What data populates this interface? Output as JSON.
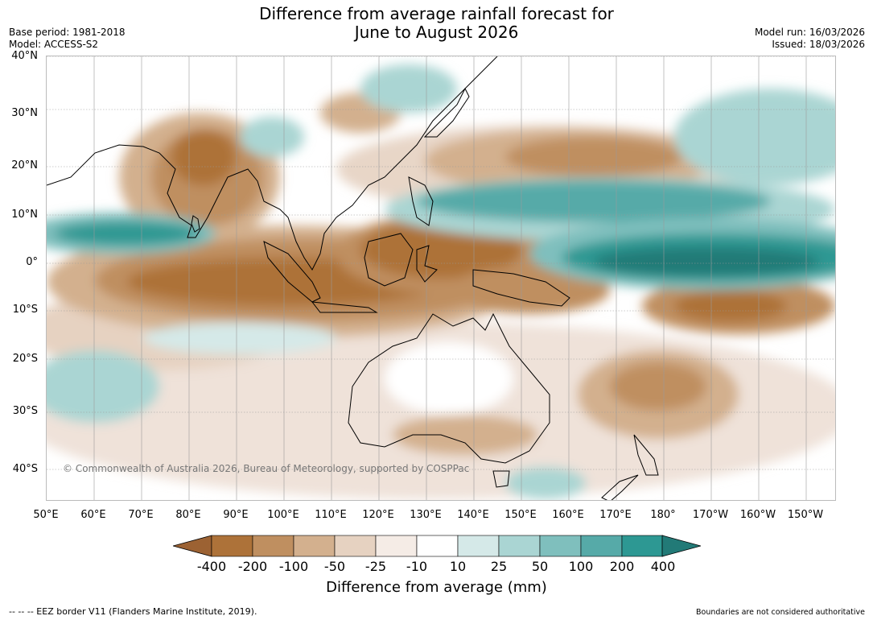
{
  "title": {
    "line1": "Difference from average rainfall forecast for",
    "line2": "June to August 2026"
  },
  "meta": {
    "base_period": "Base period: 1981-2018",
    "model": "Model: ACCESS-S2",
    "model_run": "Model run: 16/03/2026",
    "issued": "Issued: 18/03/2026"
  },
  "lat_labels": [
    "40°N",
    "30°N",
    "20°N",
    "10°N",
    "0°",
    "10°S",
    "20°S",
    "30°S",
    "40°S"
  ],
  "lon_labels": [
    "50°E",
    "60°E",
    "70°E",
    "80°E",
    "90°E",
    "100°E",
    "110°E",
    "120°E",
    "130°E",
    "140°E",
    "150°E",
    "160°E",
    "170°E",
    "180°",
    "170°W",
    "160°W",
    "150°W"
  ],
  "copyright": "© Commonwealth of Australia 2026, Bureau of Meteorology, supported by COSPPac",
  "colorbar": {
    "labels": [
      "-400",
      "-200",
      "-100",
      "-50",
      "-25",
      "-10",
      "10",
      "25",
      "50",
      "100",
      "200",
      "400"
    ],
    "colors": [
      "#9c6233",
      "#ad7239",
      "#bf8f60",
      "#d3b08e",
      "#e6d2c1",
      "#f5ece6",
      "#ffffff",
      "#d5e9e8",
      "#aad5d3",
      "#7fbfbd",
      "#56aaa8",
      "#2d9893",
      "#227a77"
    ],
    "title": "Difference from average (mm)"
  },
  "footer": {
    "left": "--  --  -- EEZ border V11 (Flanders Marine Institute, 2019).",
    "right": "Boundaries are not considered authoritative"
  }
}
